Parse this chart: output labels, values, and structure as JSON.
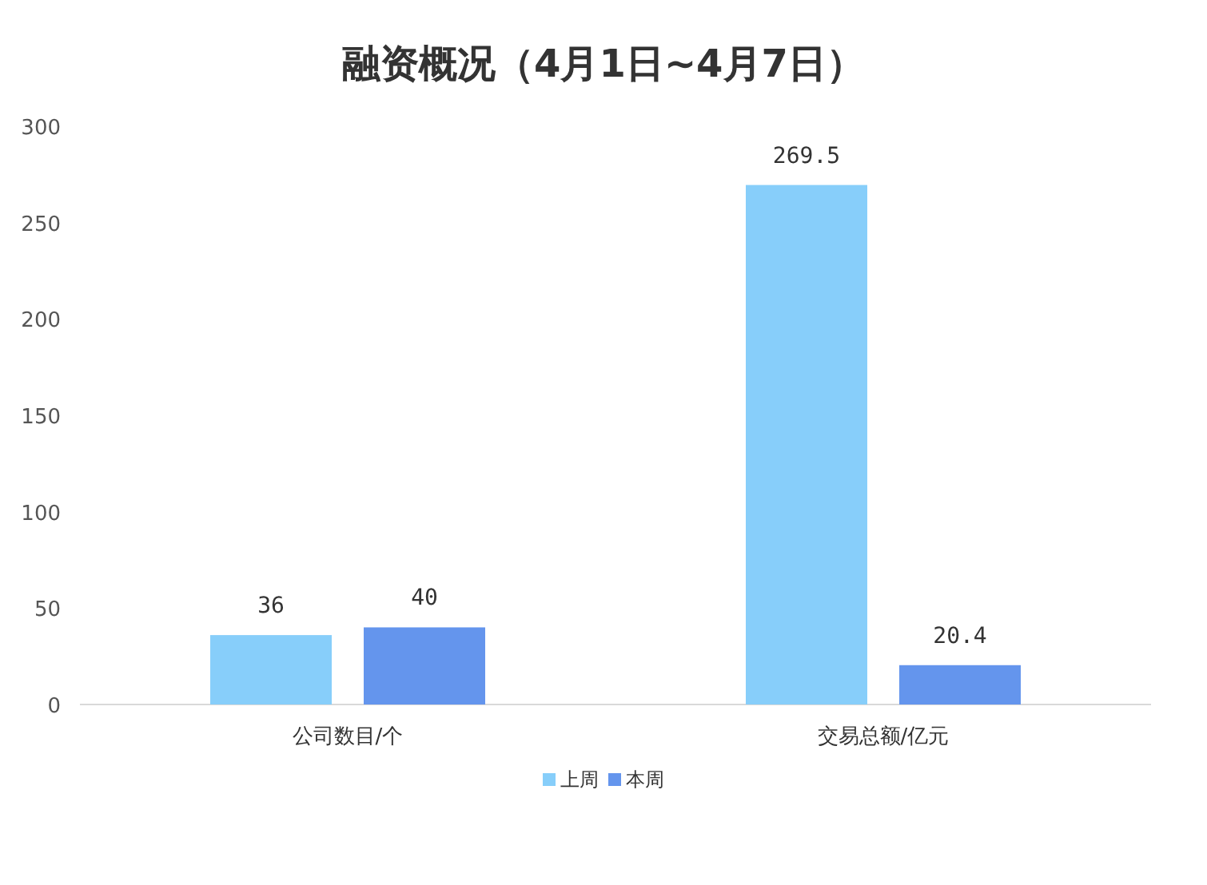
{
  "chart_data": {
    "type": "bar",
    "title": "融资概况（4月1日~4月7日）",
    "categories": [
      "公司数目/个",
      "交易总额/亿元"
    ],
    "series": [
      {
        "name": "上周",
        "color": "#87cefa",
        "values": [
          36,
          269.5
        ]
      },
      {
        "name": "本周",
        "color": "#6495ed",
        "values": [
          40,
          20.4
        ]
      }
    ],
    "ylim": [
      0,
      300
    ],
    "yticks": [
      0,
      50,
      100,
      150,
      200,
      250,
      300
    ],
    "data_labels": true,
    "legend": "bottom"
  }
}
